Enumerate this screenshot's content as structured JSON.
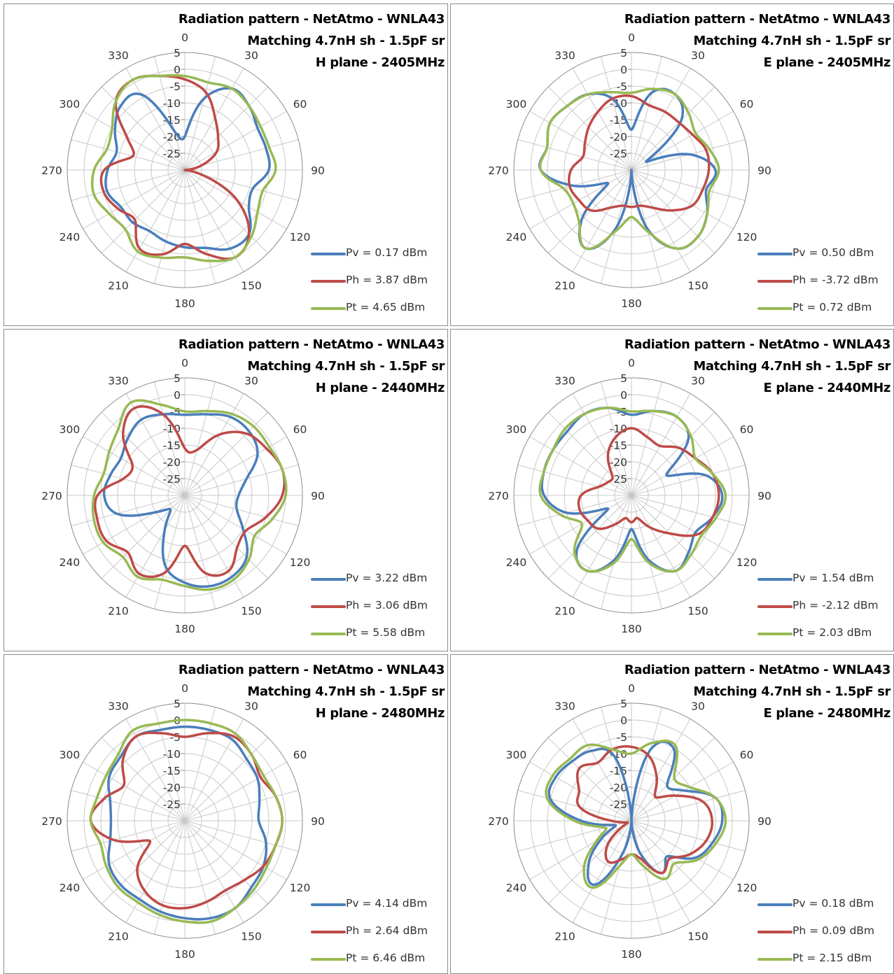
{
  "colors": {
    "pv": "#4a7ebb",
    "ph": "#be4b48",
    "pt": "#98b954"
  },
  "chart_data": [
    {
      "type": "polar-line",
      "plane": "H",
      "freq_mhz": 2405,
      "title": [
        "Radiation pattern - NetAtmo - WNLA43",
        "Matching 4.7nH sh - 1.5pF sr",
        "H plane - 2405MHz"
      ],
      "r_ticks": [
        "5",
        "0",
        "-5",
        "-10",
        "-15",
        "-20",
        "-25"
      ],
      "angle_ticks": [
        "0",
        "30",
        "60",
        "90",
        "120",
        "150",
        "180",
        "210",
        "240",
        "270",
        "300",
        "330"
      ],
      "r_range": [
        -30,
        5
      ],
      "theta_deg": [
        0,
        15,
        30,
        45,
        60,
        75,
        90,
        105,
        120,
        135,
        150,
        165,
        180,
        195,
        210,
        225,
        240,
        255,
        270,
        285,
        300,
        315,
        330,
        345
      ],
      "series": [
        {
          "key": "pv",
          "name": "Pv",
          "legend": "Pv = 0.17 dBm",
          "values": [
            -20,
            -8,
            -2,
            -3,
            -5,
            -5,
            -5,
            -9,
            -8,
            -3,
            -3,
            -6,
            -7,
            -8,
            -9,
            -8,
            -8,
            -6,
            -7,
            -9,
            -6,
            -3,
            -4,
            -18
          ]
        },
        {
          "key": "ph",
          "name": "Ph",
          "legend": "Ph = 3.87 dBm",
          "values": [
            -3,
            -6,
            -12,
            -16,
            -19,
            -25,
            -30,
            -25,
            -12,
            -3,
            0,
            -4,
            -8,
            -4,
            -3,
            -9,
            -7,
            -5,
            -6,
            -14,
            -10,
            -1,
            1,
            -1
          ]
        },
        {
          "key": "pt",
          "name": "Pt",
          "legend": "Pt =  4.65 dBm",
          "values": [
            -2,
            -3,
            -2,
            -3,
            -4,
            -4,
            -3,
            -6,
            -5,
            -2,
            0,
            -2,
            -4,
            -3,
            -2,
            -5,
            -4,
            -2,
            -3,
            -6,
            -5,
            -1,
            1,
            -1
          ]
        }
      ]
    },
    {
      "type": "polar-line",
      "plane": "E",
      "freq_mhz": 2405,
      "title": [
        "Radiation pattern - NetAtmo - WNLA43",
        "Matching 4.7nH sh - 1.5pF sr",
        "E plane - 2405MHz"
      ],
      "r_ticks": [
        "5",
        "0",
        "-5",
        "-10",
        "-15",
        "-20",
        "-25"
      ],
      "angle_ticks": [
        "0",
        "30",
        "60",
        "90",
        "120",
        "150",
        "180",
        "210",
        "240",
        "270",
        "300",
        "330"
      ],
      "r_range": [
        -30,
        5
      ],
      "theta_deg": [
        0,
        15,
        30,
        45,
        60,
        75,
        90,
        105,
        120,
        135,
        150,
        165,
        180,
        195,
        210,
        225,
        240,
        255,
        270,
        285,
        300,
        315,
        330,
        345
      ],
      "series": [
        {
          "key": "pv",
          "name": "Pv",
          "legend": "Pv = 0.50 dBm",
          "values": [
            -18,
            -6,
            -4,
            -9,
            -25,
            -12,
            -5,
            -7,
            -4,
            -2,
            -3,
            -12,
            -30,
            -12,
            -3,
            -9,
            -22,
            -12,
            -3,
            -4,
            -2,
            -3,
            -4,
            -8
          ]
        },
        {
          "key": "ph",
          "name": "Ph",
          "legend": "Ph = -3.72 dBm",
          "values": [
            -8,
            -10,
            -10,
            -10,
            -9,
            -7,
            -7,
            -8,
            -9,
            -13,
            -17,
            -19,
            -19,
            -19,
            -17,
            -13,
            -12,
            -11,
            -12,
            -15,
            -14,
            -12,
            -10,
            -8
          ]
        },
        {
          "key": "pt",
          "name": "Pt",
          "legend": "Pt =  0.72 dBm",
          "values": [
            -7,
            -5,
            -4,
            -6,
            -8,
            -6,
            -4,
            -6,
            -4,
            -2,
            -3,
            -11,
            -16,
            -11,
            -3,
            -8,
            -10,
            -9,
            -3,
            -4,
            -2,
            -3,
            -4,
            -6
          ]
        }
      ]
    },
    {
      "type": "polar-line",
      "plane": "H",
      "freq_mhz": 2440,
      "title": [
        "Radiation pattern - NetAtmo - WNLA43",
        "Matching 4.7nH sh - 1.5pF sr",
        "H plane - 2440MHz"
      ],
      "r_ticks": [
        "5",
        "0",
        "-5",
        "-10",
        "-15",
        "-20",
        "-25"
      ],
      "angle_ticks": [
        "0",
        "30",
        "60",
        "90",
        "120",
        "150",
        "180",
        "210",
        "240",
        "270",
        "300",
        "330"
      ],
      "r_range": [
        -30,
        5
      ],
      "theta_deg": [
        0,
        15,
        30,
        45,
        60,
        75,
        90,
        105,
        120,
        135,
        150,
        165,
        180,
        195,
        210,
        225,
        240,
        255,
        270,
        285,
        300,
        315,
        330,
        345
      ],
      "series": [
        {
          "key": "pv",
          "name": "Pv",
          "legend": "Pv = 3.22 dBm",
          "values": [
            -6,
            -5,
            -3,
            -3,
            -5,
            -11,
            -14,
            -14,
            -10,
            -4,
            -2,
            -2,
            -4,
            -8,
            -18,
            -24,
            -20,
            -9,
            -6,
            -7,
            -8,
            -6,
            -4,
            -5
          ]
        },
        {
          "key": "ph",
          "name": "Ph",
          "legend": "Ph = 3.06 dBm",
          "values": [
            -16,
            -16,
            -9,
            -4,
            -2,
            0,
            -1,
            -5,
            -9,
            -8,
            -4,
            -6,
            -15,
            -6,
            -3,
            -6,
            -3,
            -3,
            -4,
            -11,
            -12,
            -4,
            0,
            -5
          ]
        },
        {
          "key": "pt",
          "name": "Pt",
          "legend": "Pt =  5.58 dBm",
          "values": [
            -5,
            -4,
            -2,
            -1,
            -1,
            0,
            0,
            -3,
            -6,
            -3,
            -1,
            -1,
            -3,
            -4,
            -2,
            -4,
            -2,
            -2,
            -3,
            -5,
            -4,
            -2,
            2,
            -2
          ]
        }
      ]
    },
    {
      "type": "polar-line",
      "plane": "E",
      "freq_mhz": 2440,
      "title": [
        "Radiation pattern - NetAtmo - WNLA43",
        "Matching 4.7nH sh - 1.5pF sr",
        "E plane - 2440MHz"
      ],
      "r_ticks": [
        "5",
        "0",
        "-5",
        "-10",
        "-15",
        "-20",
        "-25"
      ],
      "angle_ticks": [
        "0",
        "30",
        "60",
        "90",
        "120",
        "150",
        "180",
        "210",
        "240",
        "270",
        "300",
        "330"
      ],
      "r_range": [
        -30,
        5
      ],
      "theta_deg": [
        0,
        15,
        30,
        45,
        60,
        75,
        90,
        105,
        120,
        135,
        150,
        165,
        180,
        195,
        210,
        225,
        240,
        255,
        270,
        285,
        300,
        315,
        330,
        345
      ],
      "series": [
        {
          "key": "pv",
          "name": "Pv",
          "legend": "Pv = 1.54 dBm",
          "values": [
            -6,
            -4,
            -3,
            -6,
            -18,
            -7,
            -3,
            -5,
            -8,
            -6,
            -4,
            -10,
            -20,
            -10,
            -4,
            -7,
            -22,
            -10,
            -4,
            -3,
            -3,
            -3,
            -2,
            -3
          ]
        },
        {
          "key": "ph",
          "name": "Ph",
          "legend": "Ph = -2.12 dBm",
          "values": [
            -10,
            -12,
            -13,
            -10,
            -8,
            -5,
            -4,
            -5,
            -7,
            -14,
            -19,
            -23,
            -22,
            -23,
            -20,
            -16,
            -15,
            -14,
            -15,
            -20,
            -22,
            -22,
            -16,
            -12
          ]
        },
        {
          "key": "pt",
          "name": "Pt",
          "legend": "Pt =  2.03 dBm",
          "values": [
            -5,
            -4,
            -3,
            -5,
            -8,
            -5,
            -2,
            -4,
            -6,
            -5,
            -4,
            -9,
            -17,
            -9,
            -4,
            -6,
            -13,
            -8,
            -3,
            -3,
            -3,
            -2,
            -2,
            -3
          ]
        }
      ]
    },
    {
      "type": "polar-line",
      "plane": "H",
      "freq_mhz": 2480,
      "title": [
        "Radiation pattern - NetAtmo - WNLA43",
        "Matching 4.7nH sh - 1.5pF sr",
        "H plane - 2480MHz"
      ],
      "r_ticks": [
        "5",
        "0",
        "-5",
        "-10",
        "-15",
        "-20",
        "-25"
      ],
      "angle_ticks": [
        "0",
        "30",
        "60",
        "90",
        "120",
        "150",
        "180",
        "210",
        "240",
        "270",
        "300",
        "330"
      ],
      "r_range": [
        -30,
        5
      ],
      "theta_deg": [
        0,
        15,
        30,
        45,
        60,
        75,
        90,
        105,
        120,
        135,
        150,
        165,
        180,
        195,
        210,
        225,
        240,
        255,
        270,
        285,
        300,
        315,
        330,
        345
      ],
      "series": [
        {
          "key": "pv",
          "name": "Pv",
          "legend": "Pv = 4.14 dBm",
          "values": [
            -2,
            -2,
            -2,
            -4,
            -5,
            -7,
            -8,
            -5,
            -3,
            -2,
            0,
            0,
            -1,
            -2,
            -3,
            -3,
            -4,
            -7,
            -8,
            -7,
            -4,
            -3,
            -1,
            -2
          ]
        },
        {
          "key": "ph",
          "name": "Ph",
          "legend": "Ph = 2.64 dBm",
          "values": [
            -5,
            -3,
            -1,
            -2,
            -4,
            -2,
            -1,
            -2,
            -3,
            -5,
            -6,
            -5,
            -4,
            -4,
            -6,
            -10,
            -18,
            -8,
            -2,
            -5,
            -9,
            -4,
            -1,
            -3
          ]
        },
        {
          "key": "pt",
          "name": "Pt",
          "legend": "Pt =  6.46 dBm",
          "values": [
            0,
            0,
            0,
            -2,
            -3,
            -2,
            -1,
            -2,
            -2,
            -1,
            0,
            1,
            0,
            -1,
            -2,
            -2,
            -3,
            -4,
            -2,
            -3,
            -3,
            -2,
            1,
            0
          ]
        }
      ]
    },
    {
      "type": "polar-line",
      "plane": "E",
      "freq_mhz": 2480,
      "title": [
        "Radiation pattern - NetAtmo - WNLA43",
        "Matching 4.7nH sh - 1.5pF sr",
        "E plane - 2480MHz"
      ],
      "r_ticks": [
        "5",
        "0",
        "-5",
        "-10",
        "-15",
        "-20",
        "-25"
      ],
      "angle_ticks": [
        "0",
        "30",
        "60",
        "90",
        "120",
        "150",
        "180",
        "210",
        "240",
        "270",
        "300",
        "330"
      ],
      "r_range": [
        -30,
        5
      ],
      "theta_deg": [
        0,
        15,
        30,
        45,
        60,
        75,
        90,
        105,
        120,
        135,
        150,
        165,
        180,
        195,
        210,
        225,
        240,
        255,
        270,
        285,
        300,
        315,
        330,
        345
      ],
      "series": [
        {
          "key": "pv",
          "name": "Pv",
          "legend": "Pv = 0.18 dBm",
          "values": [
            -30,
            -8,
            -5,
            -15,
            -12,
            -4,
            -3,
            -5,
            -8,
            -15,
            -12,
            -20,
            -30,
            -20,
            -8,
            -12,
            -20,
            -25,
            -15,
            -5,
            -4,
            -5,
            -6,
            -10
          ]
        },
        {
          "key": "ph",
          "name": "Ph",
          "legend": "Ph = 0.09 dBm",
          "values": [
            -8,
            -10,
            -15,
            -20,
            -15,
            -8,
            -6,
            -7,
            -10,
            -14,
            -12,
            -18,
            -20,
            -18,
            -16,
            -20,
            -28,
            -28,
            -24,
            -14,
            -12,
            -8,
            -10,
            -8
          ]
        },
        {
          "key": "pt",
          "name": "Pt",
          "legend": "Pt =  2.15 dBm",
          "values": [
            -10,
            -6,
            -4,
            -12,
            -10,
            -4,
            -2,
            -4,
            -7,
            -12,
            -10,
            -16,
            -20,
            -16,
            -7,
            -10,
            -18,
            -22,
            -13,
            -4,
            -3,
            -4,
            -4,
            -8
          ]
        }
      ]
    }
  ]
}
